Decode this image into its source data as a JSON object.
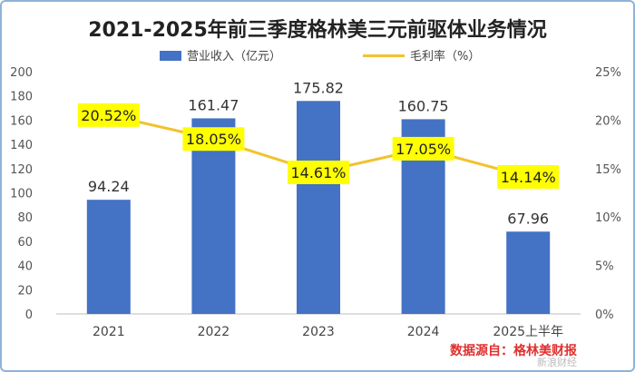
{
  "chart_data": {
    "type": "bar+line",
    "title": "2021-2025年前三季度格林美三元前驱体业务情况",
    "categories": [
      "2021",
      "2022",
      "2023",
      "2024",
      "2025上半年"
    ],
    "series": [
      {
        "name": "营业收入（亿元）",
        "type": "bar",
        "axis": "left",
        "color": "#4472c4",
        "values": [
          94.24,
          161.47,
          175.82,
          160.75,
          67.96
        ],
        "labels": [
          "94.24",
          "161.47",
          "175.82",
          "160.75",
          "67.96"
        ]
      },
      {
        "name": "毛利率（%）",
        "type": "line",
        "axis": "right",
        "color": "#f2c22d",
        "values": [
          20.52,
          18.05,
          14.61,
          17.05,
          14.14
        ],
        "labels": [
          "20.52%",
          "18.05%",
          "14.61%",
          "17.05%",
          "14.14%"
        ]
      }
    ],
    "y_left": {
      "min": 0,
      "max": 200,
      "ticks": [
        "0",
        "20",
        "40",
        "60",
        "80",
        "100",
        "120",
        "140",
        "160",
        "180",
        "200"
      ]
    },
    "y_right": {
      "min": 0,
      "max": 25,
      "ticks": [
        "0%",
        "5%",
        "10%",
        "15%",
        "20%",
        "25%"
      ]
    },
    "legend_position": "top",
    "label_highlight_color": "#ffff00",
    "grid": false
  },
  "source_note": "数据源自：格林美财报",
  "watermark": "新浪财经"
}
